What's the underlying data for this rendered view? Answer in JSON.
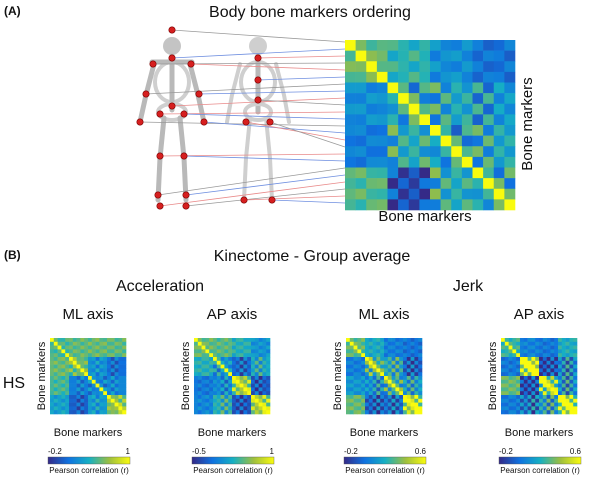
{
  "panel_a": {
    "label": "(A)",
    "title": "Body bone markers ordering",
    "y_label": "Bone markers",
    "x_label": "Bone markers"
  },
  "panel_b": {
    "label": "(B)",
    "title": "Kinectome - Group average",
    "groups": [
      {
        "title": "Acceleration"
      },
      {
        "title": "Jerk"
      }
    ],
    "row_label": "HS",
    "plots": [
      {
        "axis": "ML axis",
        "y_label": "Bone markers",
        "x_label": "Bone markers",
        "colorbar": {
          "min": "-0.2",
          "max": "1",
          "label": "Pearson correlation (r)"
        }
      },
      {
        "axis": "AP axis",
        "y_label": "Bone markers",
        "x_label": "Bone markers",
        "colorbar": {
          "min": "-0.5",
          "max": "1",
          "label": "Pearson correlation (r)"
        }
      },
      {
        "axis": "ML axis",
        "y_label": "Bone markers",
        "x_label": "Bone markers",
        "colorbar": {
          "min": "-0.2",
          "max": "0.6",
          "label": "Pearson correlation (r)"
        }
      },
      {
        "axis": "AP axis",
        "y_label": "Bone markers",
        "x_label": "Bone markers",
        "colorbar": {
          "min": "-0.2",
          "max": "0.6",
          "label": "Pearson correlation (r)"
        }
      }
    ]
  }
}
